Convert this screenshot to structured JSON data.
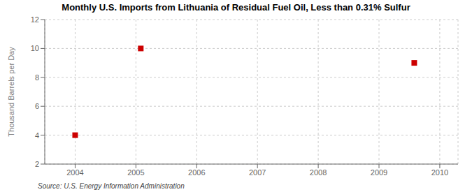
{
  "chart_data": {
    "type": "scatter",
    "title": "Monthly U.S. Imports from Lithuania of Residual Fuel Oil, Less than 0.31% Sulfur",
    "ylabel": "Thousand Barrels per Day",
    "annotation": "Source: U.S. Energy Information Administration",
    "x": [
      2004.0,
      2005.08,
      2009.58
    ],
    "values": [
      4,
      10,
      9
    ],
    "color": "#cc0000",
    "marker": "square",
    "xlim": [
      2003.5,
      2010.3
    ],
    "xticks": [
      2004,
      2005,
      2006,
      2007,
      2008,
      2009,
      2010
    ],
    "ylim": [
      2,
      12
    ],
    "yticks": [
      2,
      4,
      6,
      8,
      10,
      12
    ],
    "grid": true
  }
}
